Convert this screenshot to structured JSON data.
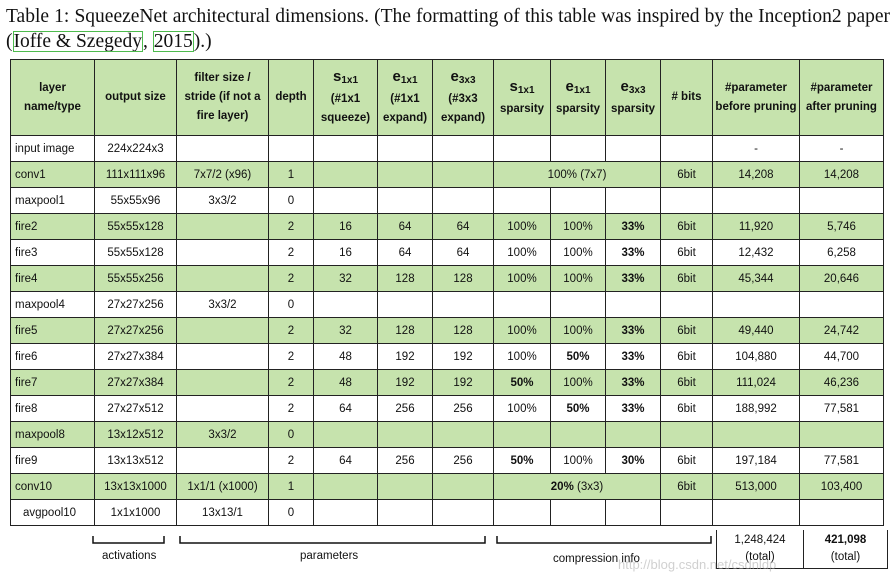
{
  "caption": {
    "part1": "Table 1: SqueezeNet architectural dimensions. (The formatting of this table was inspired by the Inception2 paper (",
    "cite_author": "Ioffe & Szegedy",
    "cite_sep": ", ",
    "cite_year": "2015",
    "part2": ").)"
  },
  "headers": {
    "layer": "layer name/type",
    "output_size": "output size",
    "filter": "filter size / stride (if not a fire layer)",
    "depth": "depth",
    "s1x1_symbol": "s",
    "s1x1_sub": "1x1",
    "s1x1_note": "(#1x1 squeeze)",
    "e1x1_symbol": "e",
    "e1x1_sub": "1x1",
    "e1x1_note": "(#1x1 expand)",
    "e3x3_symbol": "e",
    "e3x3_sub": "3x3",
    "e3x3_note": "(#3x3 expand)",
    "s1x1_sp_symbol": "s",
    "s1x1_sp_sub": "1x1",
    "s1x1_sp_note": "sparsity",
    "e1x1_sp_symbol": "e",
    "e1x1_sp_sub": "1x1",
    "e1x1_sp_note": "sparsity",
    "e3x3_sp_symbol": "e",
    "e3x3_sp_sub": "3x3",
    "e3x3_sp_note": "sparsity",
    "bits": "# bits",
    "param_before": "#parameter before pruning",
    "param_after": "#parameter after pruning"
  },
  "rows": [
    {
      "layer": "input image",
      "output": "224x224x3",
      "filter": "",
      "depth": "",
      "s1x1": "",
      "e1x1": "",
      "e3x3": "",
      "s_sp": "",
      "e1_sp": "",
      "e3_sp": "",
      "bits": "",
      "before": "-",
      "after": "-"
    },
    {
      "layer": "conv1",
      "output": "111x111x96",
      "filter": "7x7/2 (x96)",
      "depth": "1",
      "s1x1": "",
      "e1x1": "",
      "e3x3": "",
      "span_sparsity": "100% (7x7)",
      "bits": "6bit",
      "before": "14,208",
      "after": "14,208"
    },
    {
      "layer": "maxpool1",
      "output": "55x55x96",
      "filter": "3x3/2",
      "depth": "0",
      "s1x1": "",
      "e1x1": "",
      "e3x3": "",
      "s_sp": "",
      "e1_sp": "",
      "e3_sp": "",
      "bits": "",
      "before": "",
      "after": ""
    },
    {
      "layer": "fire2",
      "output": "55x55x128",
      "filter": "",
      "depth": "2",
      "s1x1": "16",
      "e1x1": "64",
      "e3x3": "64",
      "s_sp": "100%",
      "e1_sp": "100%",
      "e3_sp": "33%",
      "bits": "6bit",
      "before": "11,920",
      "after": "5,746"
    },
    {
      "layer": "fire3",
      "output": "55x55x128",
      "filter": "",
      "depth": "2",
      "s1x1": "16",
      "e1x1": "64",
      "e3x3": "64",
      "s_sp": "100%",
      "e1_sp": "100%",
      "e3_sp": "33%",
      "bits": "6bit",
      "before": "12,432",
      "after": "6,258"
    },
    {
      "layer": "fire4",
      "output": "55x55x256",
      "filter": "",
      "depth": "2",
      "s1x1": "32",
      "e1x1": "128",
      "e3x3": "128",
      "s_sp": "100%",
      "e1_sp": "100%",
      "e3_sp": "33%",
      "bits": "6bit",
      "before": "45,344",
      "after": "20,646"
    },
    {
      "layer": "maxpool4",
      "output": "27x27x256",
      "filter": "3x3/2",
      "depth": "0",
      "s1x1": "",
      "e1x1": "",
      "e3x3": "",
      "s_sp": "",
      "e1_sp": "",
      "e3_sp": "",
      "bits": "",
      "before": "",
      "after": ""
    },
    {
      "layer": "fire5",
      "output": "27x27x256",
      "filter": "",
      "depth": "2",
      "s1x1": "32",
      "e1x1": "128",
      "e3x3": "128",
      "s_sp": "100%",
      "e1_sp": "100%",
      "e3_sp": "33%",
      "bits": "6bit",
      "before": "49,440",
      "after": "24,742"
    },
    {
      "layer": "fire6",
      "output": "27x27x384",
      "filter": "",
      "depth": "2",
      "s1x1": "48",
      "e1x1": "192",
      "e3x3": "192",
      "s_sp": "100%",
      "e1_sp": "50%",
      "e3_sp": "33%",
      "bits": "6bit",
      "before": "104,880",
      "after": "44,700"
    },
    {
      "layer": "fire7",
      "output": "27x27x384",
      "filter": "",
      "depth": "2",
      "s1x1": "48",
      "e1x1": "192",
      "e3x3": "192",
      "s_sp": "50%",
      "e1_sp": "100%",
      "e3_sp": "33%",
      "bits": "6bit",
      "before": "111,024",
      "after": "46,236"
    },
    {
      "layer": "fire8",
      "output": "27x27x512",
      "filter": "",
      "depth": "2",
      "s1x1": "64",
      "e1x1": "256",
      "e3x3": "256",
      "s_sp": "100%",
      "e1_sp": "50%",
      "e3_sp": "33%",
      "bits": "6bit",
      "before": "188,992",
      "after": "77,581"
    },
    {
      "layer": "maxpool8",
      "output": "13x12x512",
      "filter": "3x3/2",
      "depth": "0",
      "s1x1": "",
      "e1x1": "",
      "e3x3": "",
      "s_sp": "",
      "e1_sp": "",
      "e3_sp": "",
      "bits": "",
      "before": "",
      "after": ""
    },
    {
      "layer": "fire9",
      "output": "13x13x512",
      "filter": "",
      "depth": "2",
      "s1x1": "64",
      "e1x1": "256",
      "e3x3": "256",
      "s_sp": "50%",
      "e1_sp": "100%",
      "e3_sp": "30%",
      "bits": "6bit",
      "before": "197,184",
      "after": "77,581"
    },
    {
      "layer": "conv10",
      "output": "13x13x1000",
      "filter": "1x1/1 (x1000)",
      "depth": "1",
      "s1x1": "",
      "e1x1": "",
      "e3x3": "",
      "span_sparsity_bold": "20%",
      "span_sparsity_rest": " (3x3)",
      "bits": "6bit",
      "before": "513,000",
      "after": "103,400"
    },
    {
      "layer": "avgpool10",
      "output": "1x1x1000",
      "filter": "13x13/1",
      "depth": "0",
      "s1x1": "",
      "e1x1": "",
      "e3x3": "",
      "s_sp": "",
      "e1_sp": "",
      "e3_sp": "",
      "bits": "",
      "before": "",
      "after": ""
    }
  ],
  "totals": {
    "before_value": "1,248,424",
    "before_note": "(total)",
    "after_value": "421,098",
    "after_note": "(total)"
  },
  "bracket_labels": {
    "activations": "activations",
    "parameters": "parameters",
    "compression": "compression info"
  },
  "watermark": "http://blog.csdn.net/csdnldp",
  "colors": {
    "row_green": "#c6e3ad",
    "cite_box": "#4dbb4d"
  }
}
